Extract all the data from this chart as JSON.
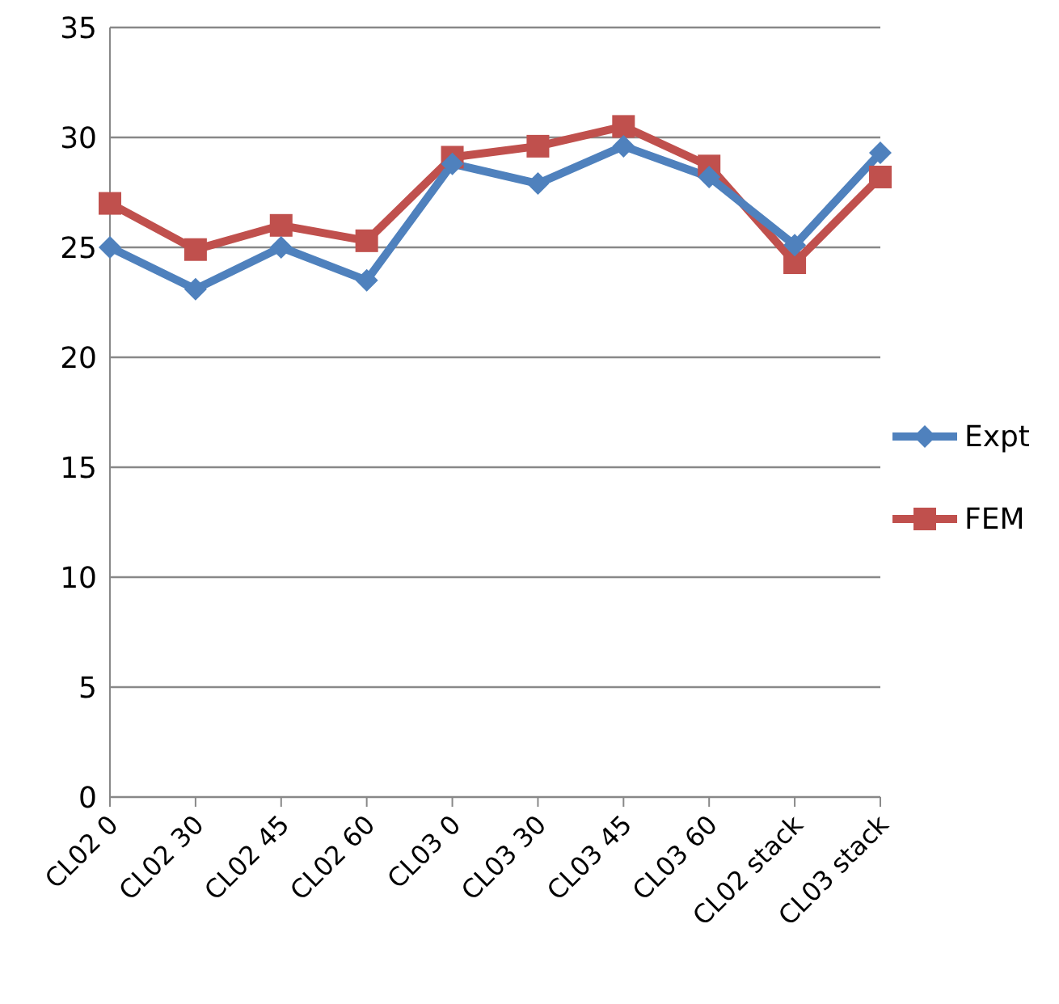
{
  "chart_data": {
    "type": "line",
    "categories": [
      "CL02 0",
      "CL02 30",
      "CL02 45",
      "CL02 60",
      "CL03 0",
      "CL03 30",
      "CL03 45",
      "CL03 60",
      "CL02 stack",
      "CL03 stack"
    ],
    "series": [
      {
        "name": "Expt",
        "color": "#4f81bd",
        "marker": "diamond",
        "values": [
          25.0,
          23.1,
          25.0,
          23.5,
          28.8,
          27.9,
          29.6,
          28.2,
          25.1,
          29.3
        ]
      },
      {
        "name": "FEM",
        "color": "#c0504d",
        "marker": "square",
        "values": [
          27.0,
          24.9,
          26.0,
          25.3,
          29.1,
          29.6,
          30.5,
          28.7,
          24.3,
          28.2
        ]
      }
    ],
    "ylim": [
      0,
      35
    ],
    "yticks": [
      0,
      5,
      10,
      15,
      20,
      25,
      30,
      35
    ],
    "grid": "y",
    "legend": "right",
    "line_style": "solid"
  }
}
